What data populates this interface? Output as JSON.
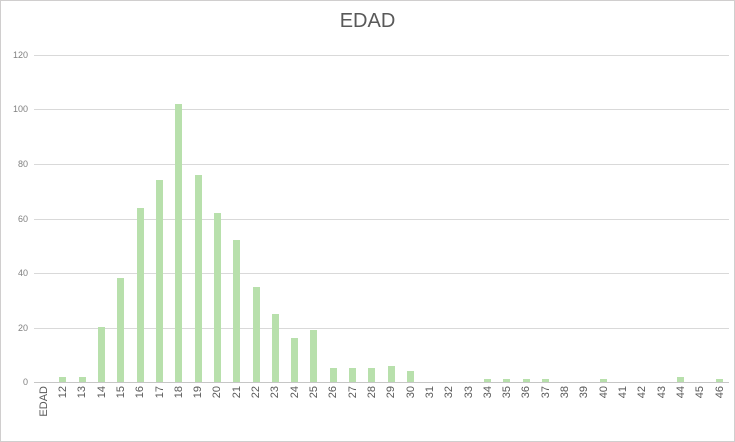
{
  "chart_data": {
    "type": "bar",
    "title": "EDAD",
    "categories": [
      "EDAD",
      "12",
      "13",
      "14",
      "15",
      "16",
      "17",
      "18",
      "19",
      "20",
      "21",
      "22",
      "23",
      "24",
      "25",
      "26",
      "27",
      "28",
      "29",
      "30",
      "31",
      "32",
      "33",
      "34",
      "35",
      "36",
      "37",
      "38",
      "39",
      "40",
      "41",
      "42",
      "43",
      "44",
      "45",
      "46"
    ],
    "values": [
      0,
      2,
      2,
      20,
      38,
      64,
      74,
      102,
      76,
      62,
      52,
      35,
      25,
      16,
      19,
      5,
      5,
      5,
      6,
      4,
      0,
      0,
      0,
      1,
      1,
      1,
      1,
      0,
      0,
      1,
      0,
      0,
      0,
      2,
      0,
      1
    ],
    "xlabel": "",
    "ylabel": "",
    "ylim": [
      0,
      120
    ],
    "yticks": [
      0,
      20,
      40,
      60,
      80,
      100,
      120
    ],
    "grid": true,
    "legend": "none",
    "colors": {
      "bar_fill": "#b8e0ac",
      "gridline": "#d9d9d9",
      "axis_line": "#c6c6c6",
      "title_text": "#595959",
      "y_tick_text": "#808080",
      "x_tick_text": "#595959",
      "chart_border": "#d0cece",
      "background": "#ffffff"
    }
  }
}
